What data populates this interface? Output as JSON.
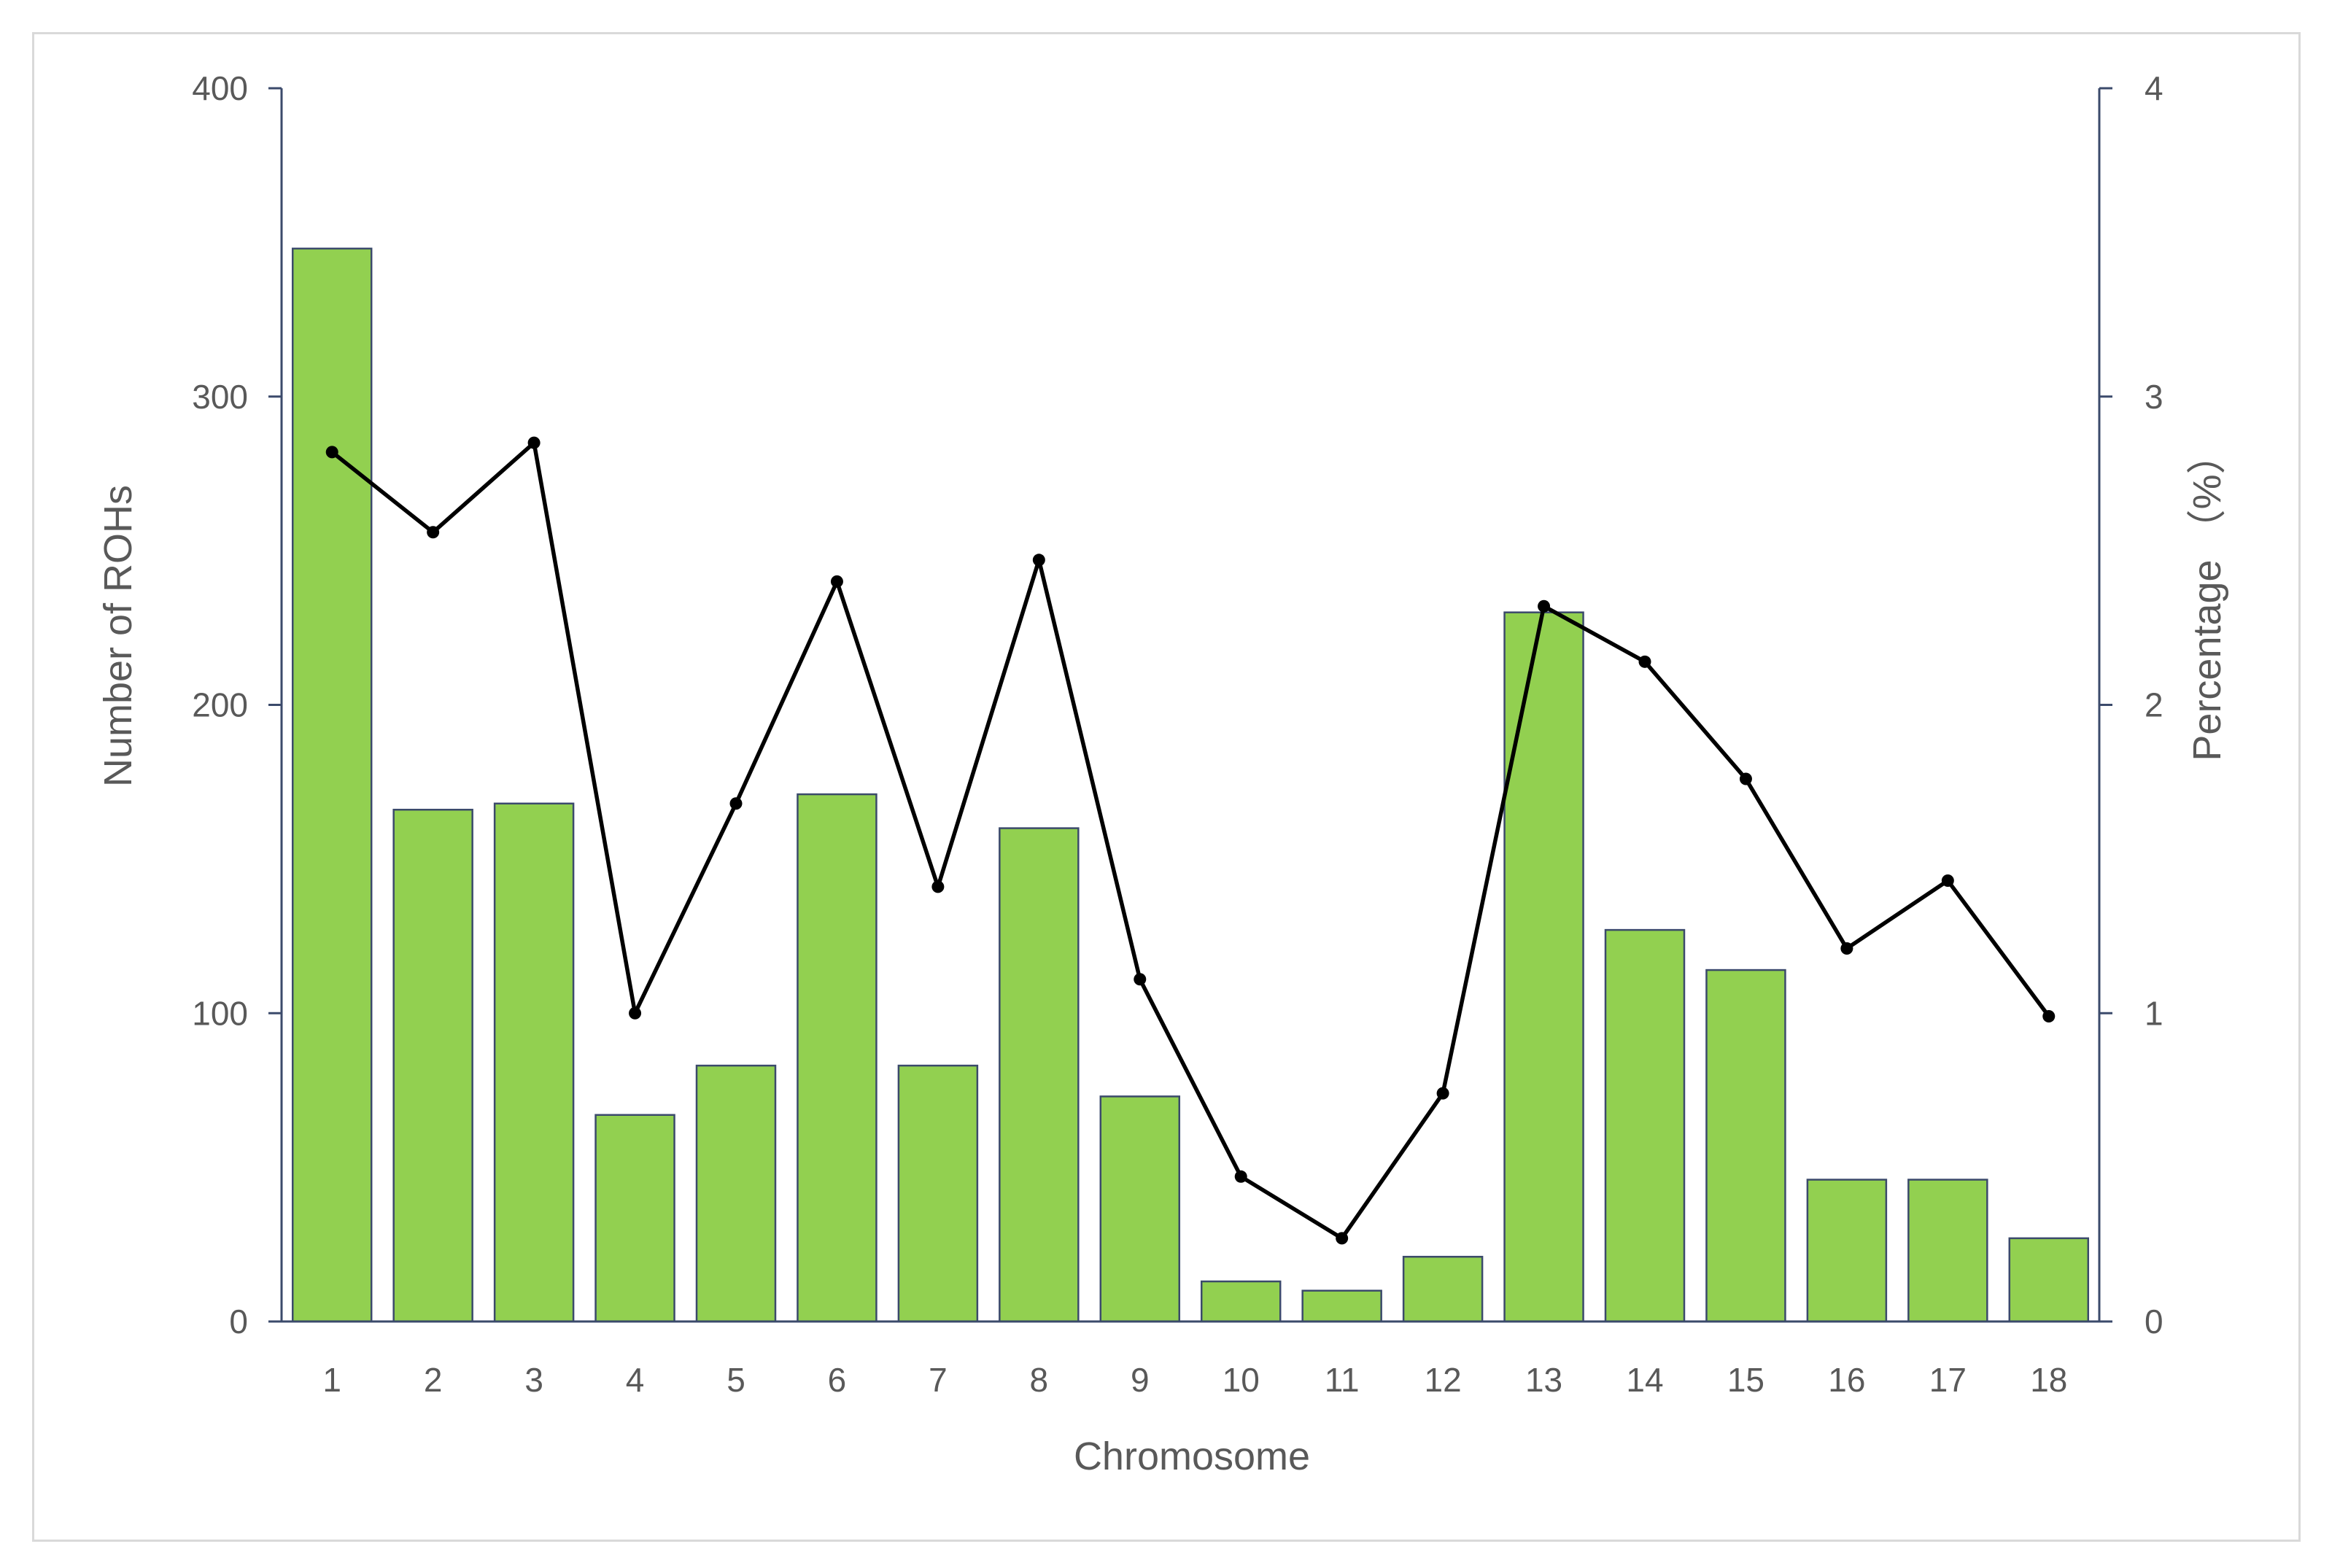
{
  "chart_data": {
    "type": "bar+line",
    "title": "",
    "xlabel": "Chromosome",
    "ylabel": "Number of ROHs",
    "y2label": "Percentage （%）",
    "categories": [
      "1",
      "2",
      "3",
      "4",
      "5",
      "6",
      "7",
      "8",
      "9",
      "10",
      "11",
      "12",
      "13",
      "14",
      "15",
      "16",
      "17",
      "18"
    ],
    "ylim": [
      0,
      400
    ],
    "y2lim": [
      0,
      4
    ],
    "yticks": [
      "0",
      "100",
      "200",
      "300",
      "400"
    ],
    "y2ticks": [
      "0",
      "1",
      "2",
      "3",
      "4"
    ],
    "grid": false,
    "legend": "none",
    "series": [
      {
        "kind": "bar",
        "axis": "left",
        "color": "#92d050",
        "values": [
          348,
          166,
          168,
          67,
          83,
          171,
          83,
          160,
          73,
          13,
          10,
          21,
          230,
          127,
          114,
          46,
          46,
          27
        ]
      },
      {
        "kind": "line",
        "axis": "right",
        "color": "#000000",
        "values": [
          2.82,
          2.56,
          2.85,
          1.0,
          1.68,
          2.4,
          1.41,
          2.47,
          1.11,
          0.47,
          0.27,
          0.74,
          2.32,
          2.14,
          1.76,
          1.21,
          1.43,
          0.99
        ]
      }
    ]
  }
}
